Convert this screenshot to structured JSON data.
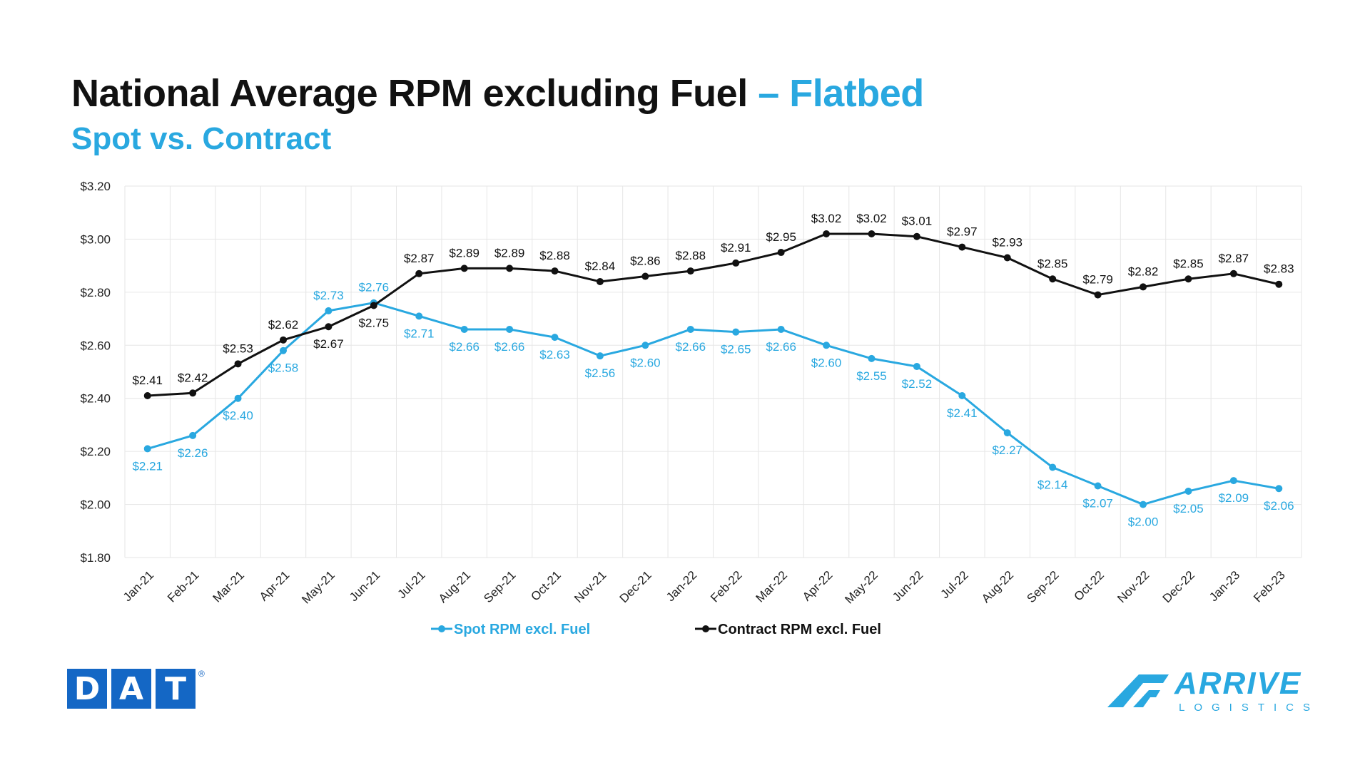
{
  "header": {
    "title_main": "National Average RPM excluding Fuel",
    "title_accent": "– Flatbed",
    "subtitle": "Spot vs. Contract"
  },
  "colors": {
    "spot": "#29a8e0",
    "contract": "#111111",
    "grid": "#e6e6e6",
    "dat": "#1467c5"
  },
  "chart_data": {
    "type": "line",
    "categories": [
      "Jan-21",
      "Feb-21",
      "Mar-21",
      "Apr-21",
      "May-21",
      "Jun-21",
      "Jul-21",
      "Aug-21",
      "Sep-21",
      "Oct-21",
      "Nov-21",
      "Dec-21",
      "Jan-22",
      "Feb-22",
      "Mar-22",
      "Apr-22",
      "May-22",
      "Jun-22",
      "Jul-22",
      "Aug-22",
      "Sep-22",
      "Oct-22",
      "Nov-22",
      "Dec-22",
      "Jan-23",
      "Feb-23"
    ],
    "series": [
      {
        "name": "Spot RPM excl. Fuel",
        "values": [
          2.21,
          2.26,
          2.4,
          2.58,
          2.73,
          2.76,
          2.71,
          2.66,
          2.66,
          2.63,
          2.56,
          2.6,
          2.66,
          2.65,
          2.66,
          2.6,
          2.55,
          2.52,
          2.41,
          2.27,
          2.14,
          2.07,
          2.0,
          2.05,
          2.09,
          2.06
        ],
        "labels": [
          "$2.21",
          "$2.26",
          "$2.40",
          "$2.58",
          "$2.73",
          "$2.76",
          "$2.71",
          "$2.66",
          "$2.66",
          "$2.63",
          "$2.56",
          "$2.60",
          "$2.66",
          "$2.65",
          "$2.66",
          "$2.60",
          "$2.55",
          "$2.52",
          "$2.41",
          "$2.27",
          "$2.14",
          "$2.07",
          "$2.00",
          "$2.05",
          "$2.09",
          "$2.06"
        ]
      },
      {
        "name": "Contract RPM excl. Fuel",
        "values": [
          2.41,
          2.42,
          2.53,
          2.62,
          2.67,
          2.75,
          2.87,
          2.89,
          2.89,
          2.88,
          2.84,
          2.86,
          2.88,
          2.91,
          2.95,
          3.02,
          3.02,
          3.01,
          2.97,
          2.93,
          2.85,
          2.79,
          2.82,
          2.85,
          2.87,
          2.83
        ],
        "labels": [
          "$2.41",
          "$2.42",
          "$2.53",
          "$2.62",
          "$2.67",
          "$2.75",
          "$2.87",
          "$2.89",
          "$2.89",
          "$2.88",
          "$2.84",
          "$2.86",
          "$2.88",
          "$2.91",
          "$2.95",
          "$3.02",
          "$3.02",
          "$3.01",
          "$2.97",
          "$2.93",
          "$2.85",
          "$2.79",
          "$2.82",
          "$2.85",
          "$2.87",
          "$2.83"
        ]
      }
    ],
    "y_ticks": [
      "$1.80",
      "$2.00",
      "$2.20",
      "$2.40",
      "$2.60",
      "$2.80",
      "$3.00",
      "$3.20"
    ],
    "ylim": [
      1.8,
      3.2
    ],
    "grid": true,
    "legend": "bottom-center"
  },
  "logos": {
    "dat": {
      "letters": [
        "D",
        "A",
        "T"
      ],
      "mark": "®"
    },
    "arrive": {
      "name": "ARRIVE",
      "sub": "LOGISTICS"
    }
  }
}
